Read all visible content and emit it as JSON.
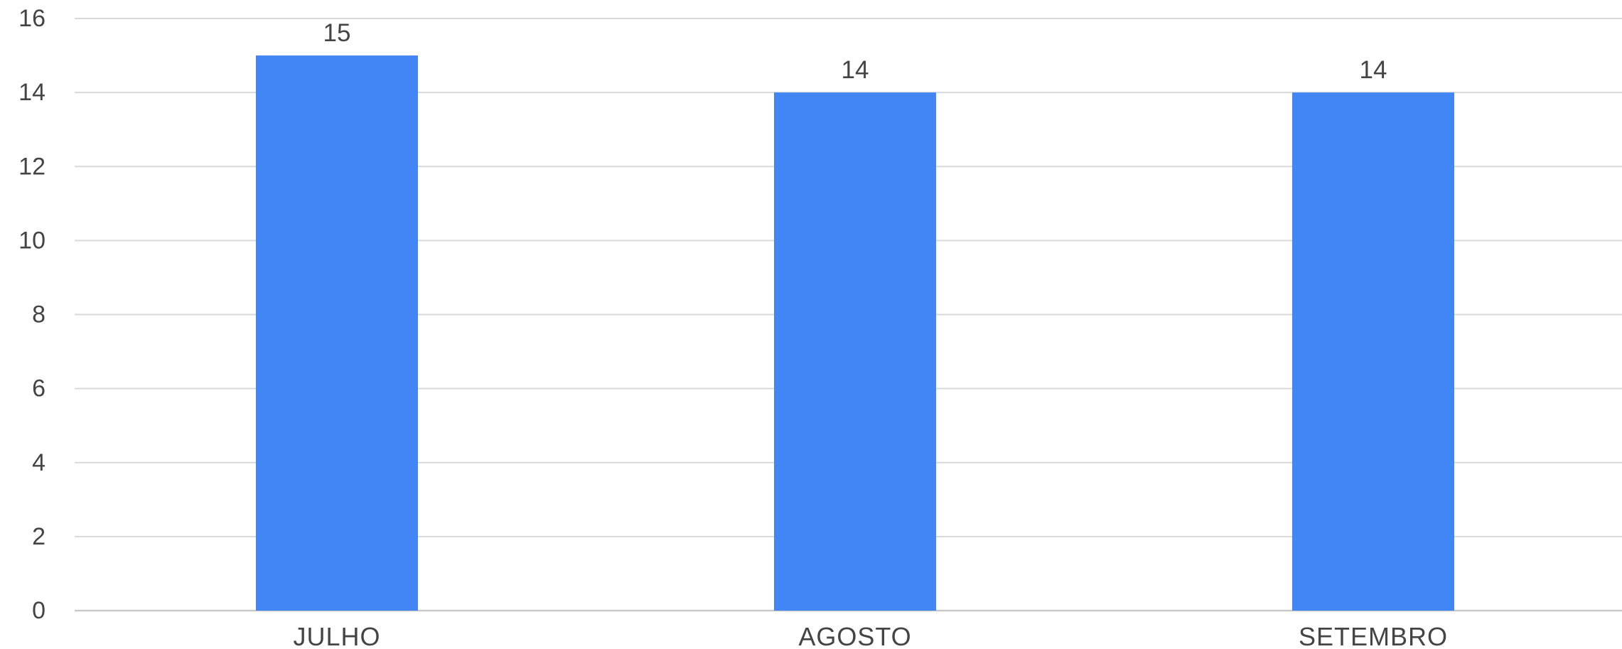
{
  "chart_data": {
    "type": "bar",
    "categories": [
      "JULHO",
      "AGOSTO",
      "SETEMBRO"
    ],
    "values": [
      15,
      14,
      14
    ],
    "data_labels": [
      "15",
      "14",
      "14"
    ],
    "ylim": [
      0,
      16
    ],
    "yticks": [
      0,
      2,
      4,
      6,
      8,
      10,
      12,
      14,
      16
    ],
    "ytick_labels": [
      "0",
      "2",
      "4",
      "6",
      "8",
      "10",
      "12",
      "14",
      "16"
    ],
    "title": "",
    "xlabel": "",
    "ylabel": "",
    "grid": true,
    "legend": "none",
    "bar_color": "#4285f4"
  }
}
